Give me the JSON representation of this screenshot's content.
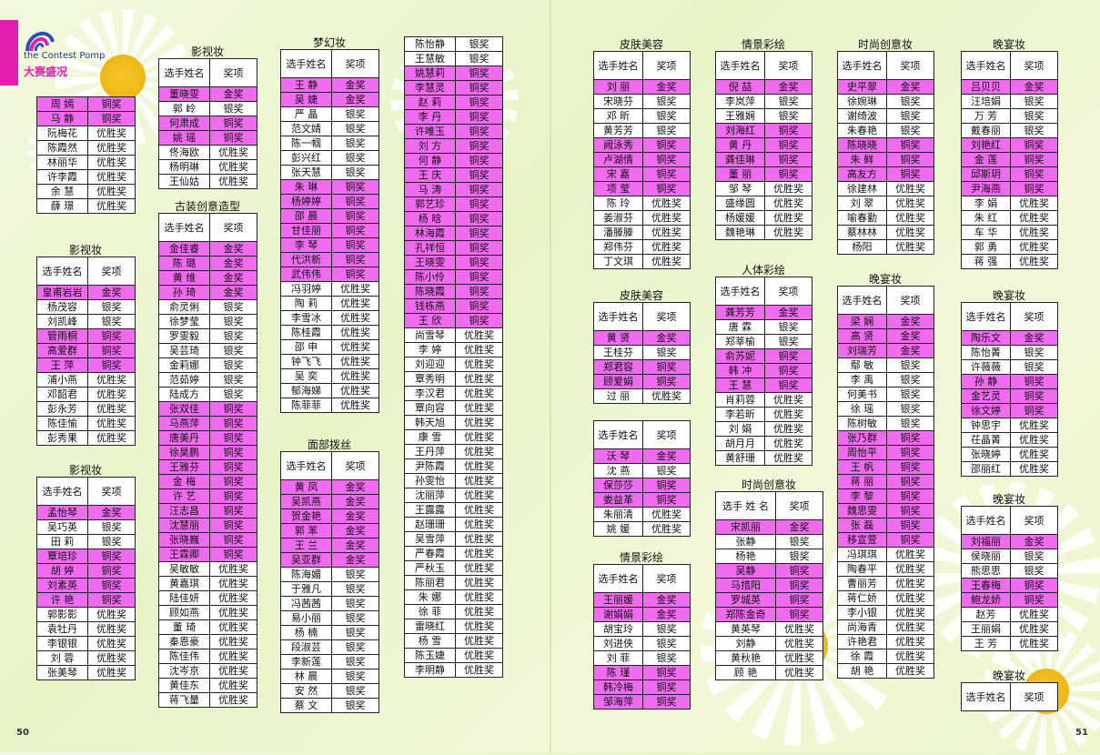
{
  "logo": {
    "en": "the Contest Pomp",
    "cn": "大赛盛况"
  },
  "pages": {
    "left": "50",
    "right": "51"
  },
  "header": {
    "name": "选手姓名",
    "name_alt": "选手 姓 名",
    "award": "奖项"
  },
  "blocks": [
    {
      "title": "",
      "header": false,
      "rows": [
        [
          "周 嫣",
          "铜奖"
        ],
        [
          "马 静",
          "铜奖"
        ],
        [
          "阮梅花",
          "优胜奖"
        ],
        [
          "陈霞然",
          "优胜奖"
        ],
        [
          "林丽华",
          "优胜奖"
        ],
        [
          "许李霞",
          "优胜奖"
        ],
        [
          "余 慧",
          "优胜奖"
        ],
        [
          "薛 璟",
          "优胜奖"
        ]
      ]
    },
    {
      "title": "影视妆",
      "header": true,
      "rows": [
        [
          "皇甫岩岩",
          "金奖"
        ],
        [
          "杨茂容",
          "银奖"
        ],
        [
          "刘凯峰",
          "银奖"
        ],
        [
          "管雨桐",
          "铜奖"
        ],
        [
          "高爱群",
          "铜奖"
        ],
        [
          "王 萍",
          "铜奖"
        ],
        [
          "浦小燕",
          "优胜奖"
        ],
        [
          "邓韶君",
          "优胜奖"
        ],
        [
          "彭永芳",
          "优胜奖"
        ],
        [
          "陈佳愉",
          "优胜奖"
        ],
        [
          "彭秀果",
          "优胜奖"
        ]
      ]
    },
    {
      "title": "影视妆",
      "header": true,
      "rows": [
        [
          "孟怡琴",
          "金奖"
        ],
        [
          "吴巧英",
          "银奖"
        ],
        [
          "田 莉",
          "银奖"
        ],
        [
          "覃培珍",
          "铜奖"
        ],
        [
          "胡 婷",
          "铜奖"
        ],
        [
          "刘素英",
          "铜奖"
        ],
        [
          "许 艳",
          "铜奖"
        ],
        [
          "郭影影",
          "优胜奖"
        ],
        [
          "袁牡丹",
          "优胜奖"
        ],
        [
          "李银银",
          "优胜奖"
        ],
        [
          "刘 蓉",
          "优胜奖"
        ],
        [
          "张美琴",
          "优胜奖"
        ]
      ]
    },
    {
      "title": "影视妆",
      "header": true,
      "rows": [
        [
          "董晓雯",
          "金奖"
        ],
        [
          "郭 岭",
          "银奖"
        ],
        [
          "何肃成",
          "铜奖"
        ],
        [
          "姚 瑶",
          "铜奖"
        ],
        [
          "佟海欧",
          "优胜奖"
        ],
        [
          "杨明琳",
          "优胜奖"
        ],
        [
          "王仙姑",
          "优胜奖"
        ]
      ]
    },
    {
      "title": "古装创意造型",
      "header": true,
      "rows": [
        [
          "金佳睿",
          "金奖"
        ],
        [
          "陈 璐",
          "金奖"
        ],
        [
          "黄 维",
          "金奖"
        ],
        [
          "孙 琦",
          "金奖"
        ],
        [
          "俞灵俐",
          "银奖"
        ],
        [
          "徐梦莹",
          "银奖"
        ],
        [
          "罗雯毅",
          "银奖"
        ],
        [
          "吴芸琦",
          "银奖"
        ],
        [
          "金莉娜",
          "银奖"
        ],
        [
          "范茹婷",
          "银奖"
        ],
        [
          "陆成方",
          "银奖"
        ],
        [
          "张双佳",
          "铜奖"
        ],
        [
          "马燕萍",
          "铜奖"
        ],
        [
          "唐美丹",
          "铜奖"
        ],
        [
          "徐昊鹏",
          "铜奖"
        ],
        [
          "王雅芬",
          "铜奖"
        ],
        [
          "金 梅",
          "铜奖"
        ],
        [
          "许 艺",
          "铜奖"
        ],
        [
          "汪志昌",
          "铜奖"
        ],
        [
          "沈慧丽",
          "铜奖"
        ],
        [
          "张晓巍",
          "铜奖"
        ],
        [
          "王霖卿",
          "铜奖"
        ],
        [
          "吴敏敏",
          "优胜奖"
        ],
        [
          "黄嘉琪",
          "优胜奖"
        ],
        [
          "陆佳妍",
          "优胜奖"
        ],
        [
          "顾如燕",
          "优胜奖"
        ],
        [
          "董 琦",
          "优胜奖"
        ],
        [
          "秦恩豪",
          "优胜奖"
        ],
        [
          "陈佳伟",
          "优胜奖"
        ],
        [
          "沈岑京",
          "优胜奖"
        ],
        [
          "黄佳东",
          "优胜奖"
        ],
        [
          "蒋飞量",
          "优胜奖"
        ]
      ]
    },
    {
      "title": "梦幻妆",
      "header": true,
      "rows": [
        [
          "王 静",
          "金奖"
        ],
        [
          "吴 婕",
          "金奖"
        ],
        [
          "严 晶",
          "银奖"
        ],
        [
          "范文婧",
          "银奖"
        ],
        [
          "陈一帼",
          "银奖"
        ],
        [
          "彭兴红",
          "银奖"
        ],
        [
          "张天慧",
          "银奖"
        ],
        [
          "朱 琳",
          "铜奖"
        ],
        [
          "杨婷婷",
          "铜奖"
        ],
        [
          "邵 晨",
          "铜奖"
        ],
        [
          "甘佳丽",
          "铜奖"
        ],
        [
          "李 琴",
          "铜奖"
        ],
        [
          "代洪新",
          "铜奖"
        ],
        [
          "武伟伟",
          "铜奖"
        ],
        [
          "冯羽婷",
          "优胜奖"
        ],
        [
          "陶 莉",
          "优胜奖"
        ],
        [
          "李雪冰",
          "优胜奖"
        ],
        [
          "陈桂霞",
          "优胜奖"
        ],
        [
          "邵 申",
          "优胜奖"
        ],
        [
          "钟飞飞",
          "优胜奖"
        ],
        [
          "吴 奕",
          "优胜奖"
        ],
        [
          "郁海娣",
          "优胜奖"
        ],
        [
          "陈菲菲",
          "优胜奖"
        ]
      ]
    },
    {
      "title": "面部拨丝",
      "header": true,
      "rows": [
        [
          "黄 凤",
          "金奖"
        ],
        [
          "吴凯燕",
          "金奖"
        ],
        [
          "贺金艳",
          "金奖"
        ],
        [
          "郭 苯",
          "金奖"
        ],
        [
          "王 兰",
          "金奖"
        ],
        [
          "吴亚群",
          "金奖"
        ],
        [
          "陈海媚",
          "银奖"
        ],
        [
          "于雅凡",
          "银奖"
        ],
        [
          "冯茜茜",
          "银奖"
        ],
        [
          "易小丽",
          "银奖"
        ],
        [
          "杨 楠",
          "银奖"
        ],
        [
          "段淑芸",
          "银奖"
        ],
        [
          "李新莲",
          "银奖"
        ],
        [
          "林 晨",
          "银奖"
        ],
        [
          "安 然",
          "银奖"
        ],
        [
          "蔡 文",
          "银奖"
        ]
      ]
    },
    {
      "title": "",
      "header": false,
      "rows": [
        [
          "陈怡静",
          "银奖"
        ],
        [
          "王慧敏",
          "银奖"
        ],
        [
          "姚慧莉",
          "铜奖"
        ],
        [
          "李慧灵",
          "铜奖"
        ],
        [
          "赵 莉",
          "铜奖"
        ],
        [
          "李 丹",
          "铜奖"
        ],
        [
          "许唯玉",
          "铜奖"
        ],
        [
          "刘 方",
          "铜奖"
        ],
        [
          "何 静",
          "铜奖"
        ],
        [
          "王 庆",
          "铜奖"
        ],
        [
          "马 涛",
          "铜奖"
        ],
        [
          "郭艺珍",
          "铜奖"
        ],
        [
          "杨 晗",
          "铜奖"
        ],
        [
          "林海霞",
          "铜奖"
        ],
        [
          "孔祥恒",
          "铜奖"
        ],
        [
          "王晓雯",
          "铜奖"
        ],
        [
          "陈小伶",
          "铜奖"
        ],
        [
          "陈晓霞",
          "铜奖"
        ],
        [
          "钱栋燕",
          "铜奖"
        ],
        [
          "王 欣",
          "铜奖"
        ],
        [
          "尚雪琴",
          "优胜奖"
        ],
        [
          "李 婷",
          "优胜奖"
        ],
        [
          "刘迎迎",
          "优胜奖"
        ],
        [
          "覃秀明",
          "优胜奖"
        ],
        [
          "李汉君",
          "优胜奖"
        ],
        [
          "覃向容",
          "优胜奖"
        ],
        [
          "韩天旭",
          "优胜奖"
        ],
        [
          "康 雪",
          "优胜奖"
        ],
        [
          "王丹萍",
          "优胜奖"
        ],
        [
          "尹陈霞",
          "优胜奖"
        ],
        [
          "孙雯怡",
          "优胜奖"
        ],
        [
          "沈丽萍",
          "优胜奖"
        ],
        [
          "王露露",
          "优胜奖"
        ],
        [
          "赵珊珊",
          "优胜奖"
        ],
        [
          "吴雪萍",
          "优胜奖"
        ],
        [
          "严春霞",
          "优胜奖"
        ],
        [
          "严秋玉",
          "优胜奖"
        ],
        [
          "陈丽君",
          "优胜奖"
        ],
        [
          "朱 娜",
          "优胜奖"
        ],
        [
          "徐 菲",
          "优胜奖"
        ],
        [
          "雷晓红",
          "优胜奖"
        ],
        [
          "杨 雪",
          "优胜奖"
        ],
        [
          "陈玉婕",
          "优胜奖"
        ],
        [
          "李明静",
          "优胜奖"
        ]
      ]
    },
    {
      "title": "皮肤美容",
      "header": true,
      "rows": [
        [
          "刘 丽",
          "金奖"
        ],
        [
          "宋晓芬",
          "银奖"
        ],
        [
          "邓 昕",
          "银奖"
        ],
        [
          "黄芳芳",
          "银奖"
        ],
        [
          "阙泳秀",
          "铜奖"
        ],
        [
          "卢湖倩",
          "铜奖"
        ],
        [
          "宋 嘉",
          "铜奖"
        ],
        [
          "项 莹",
          "铜奖"
        ],
        [
          "陈 玲",
          "优胜奖"
        ],
        [
          "姜淑芬",
          "优胜奖"
        ],
        [
          "潘滕滕",
          "优胜奖"
        ],
        [
          "郑伟芬",
          "优胜奖"
        ],
        [
          "丁文琪",
          "优胜奖"
        ]
      ]
    },
    {
      "title": "皮肤美容",
      "header": true,
      "rows": [
        [
          "黄 贤",
          "金奖"
        ],
        [
          "王桂芬",
          "银奖"
        ],
        [
          "郑君容",
          "铜奖"
        ],
        [
          "顾爱娟",
          "铜奖"
        ],
        [
          "过 丽",
          "优胜奖"
        ]
      ]
    },
    {
      "title": "",
      "header": true,
      "rows": [
        [
          "沃 琴",
          "金奖"
        ],
        [
          "沈 燕",
          "银奖"
        ],
        [
          "保莎莎",
          "铜奖"
        ],
        [
          "娄益革",
          "铜奖"
        ],
        [
          "朱丽清",
          "优胜奖"
        ],
        [
          "姚 媛",
          "优胜奖"
        ]
      ]
    },
    {
      "title": "情景彩绘",
      "header": true,
      "rows": [
        [
          "王丽媛",
          "金奖"
        ],
        [
          "谢娟娟",
          "金奖"
        ],
        [
          "胡宝玲",
          "银奖"
        ],
        [
          "刘进侠",
          "银奖"
        ],
        [
          "刘 菲",
          "银奖"
        ],
        [
          "陈 瑾",
          "铜奖"
        ],
        [
          "韩冷梅",
          "铜奖"
        ],
        [
          "邹海萍",
          "铜奖"
        ]
      ]
    },
    {
      "title": "情景彩绘",
      "header": true,
      "rows": [
        [
          "倪 喆",
          "金奖"
        ],
        [
          "李岚萍",
          "银奖"
        ],
        [
          "王雅娴",
          "银奖"
        ],
        [
          "刘海红",
          "铜奖"
        ],
        [
          "黄 丹",
          "铜奖"
        ],
        [
          "龚佳琳",
          "铜奖"
        ],
        [
          "董 丽",
          "铜奖"
        ],
        [
          "邹 琴",
          "优胜奖"
        ],
        [
          "盛缘圆",
          "优胜奖"
        ],
        [
          "杨媛媛",
          "优胜奖"
        ],
        [
          "魏艳琳",
          "优胜奖"
        ]
      ]
    },
    {
      "title": "人体彩绘",
      "header": true,
      "rows": [
        [
          "龚芳芳",
          "金奖"
        ],
        [
          "唐 霖",
          "银奖"
        ],
        [
          "郑莘榆",
          "银奖"
        ],
        [
          "俞苏妮",
          "铜奖"
        ],
        [
          "韩 冲",
          "铜奖"
        ],
        [
          "王 慧",
          "铜奖"
        ],
        [
          "肖莉蓉",
          "优胜奖"
        ],
        [
          "李若昕",
          "优胜奖"
        ],
        [
          "刘 娟",
          "优胜奖"
        ],
        [
          "胡月月",
          "优胜奖"
        ],
        [
          "黄舒珊",
          "优胜奖"
        ]
      ]
    },
    {
      "title": "时尚创意妆",
      "header": true,
      "alt": true,
      "rows": [
        [
          "宋凯丽",
          "金奖"
        ],
        [
          "张静",
          "银奖"
        ],
        [
          "杨艳",
          "银奖"
        ],
        [
          "吴静",
          "铜奖"
        ],
        [
          "马措阳",
          "铜奖"
        ],
        [
          "罗城英",
          "铜奖"
        ],
        [
          "郑陈金奇",
          "铜奖"
        ],
        [
          "黄英琴",
          "优胜奖"
        ],
        [
          "刘静",
          "优胜奖"
        ],
        [
          "黄秋艳",
          "优胜奖"
        ],
        [
          "顾 艳",
          "优胜奖"
        ]
      ]
    },
    {
      "title": "时尚创意妆",
      "header": true,
      "rows": [
        [
          "史平翠",
          "金奖"
        ],
        [
          "徐婉琳",
          "银奖"
        ],
        [
          "谢绮波",
          "银奖"
        ],
        [
          "朱春艳",
          "银奖"
        ],
        [
          "陈晓晓",
          "铜奖"
        ],
        [
          "朱 鲜",
          "铜奖"
        ],
        [
          "高友方",
          "铜奖"
        ],
        [
          "徐建林",
          "优胜奖"
        ],
        [
          "刘 翠",
          "优胜奖"
        ],
        [
          "喻春勤",
          "优胜奖"
        ],
        [
          "蔡林林",
          "优胜奖"
        ],
        [
          "杨阳",
          "优胜奖"
        ]
      ]
    },
    {
      "title": "晚宴妆",
      "header": true,
      "rows": [
        [
          "梁 娴",
          "金奖"
        ],
        [
          "高 贤",
          "金奖"
        ],
        [
          "刘瑞芳",
          "金奖"
        ],
        [
          "鄢 敏",
          "银奖"
        ],
        [
          "李 禹",
          "银奖"
        ],
        [
          "何美书",
          "银奖"
        ],
        [
          "徐 瑶",
          "银奖"
        ],
        [
          "陈树敏",
          "银奖"
        ],
        [
          "张乃群",
          "铜奖"
        ],
        [
          "周怡平",
          "铜奖"
        ],
        [
          "王 帆",
          "铜奖"
        ],
        [
          "蒋 丽",
          "铜奖"
        ],
        [
          "李 黎",
          "铜奖"
        ],
        [
          "魏思雯",
          "铜奖"
        ],
        [
          "张 磊",
          "铜奖"
        ],
        [
          "移宣萱",
          "铜奖"
        ],
        [
          "冯琪琪",
          "优胜奖"
        ],
        [
          "陶春平",
          "优胜奖"
        ],
        [
          "曹丽芳",
          "优胜奖"
        ],
        [
          "蒋仁娇",
          "优胜奖"
        ],
        [
          "李小银",
          "优胜奖"
        ],
        [
          "尚海青",
          "优胜奖"
        ],
        [
          "许艳君",
          "优胜奖"
        ],
        [
          "徐 霞",
          "优胜奖"
        ],
        [
          "胡 艳",
          "优胜奖"
        ]
      ]
    },
    {
      "title": "晚宴妆",
      "header": true,
      "rows": [
        [
          "吕贝贝",
          "金奖"
        ],
        [
          "汪培娟",
          "银奖"
        ],
        [
          "万 芳",
          "银奖"
        ],
        [
          "戴春丽",
          "银奖"
        ],
        [
          "刘艳红",
          "铜奖"
        ],
        [
          "金 莲",
          "铜奖"
        ],
        [
          "邱斯玥",
          "铜奖"
        ],
        [
          "尹海燕",
          "铜奖"
        ],
        [
          "李 娟",
          "优胜奖"
        ],
        [
          "朱 红",
          "优胜奖"
        ],
        [
          "车 华",
          "优胜奖"
        ],
        [
          "郭 勇",
          "优胜奖"
        ],
        [
          "蒋 强",
          "优胜奖"
        ]
      ]
    },
    {
      "title": "晚宴妆",
      "header": true,
      "rows": [
        [
          "陶乐文",
          "金奖"
        ],
        [
          "陈怡菁",
          "银奖"
        ],
        [
          "许薇薇",
          "银奖"
        ],
        [
          "孙 静",
          "铜奖"
        ],
        [
          "金艺灵",
          "铜奖"
        ],
        [
          "徐文婷",
          "铜奖"
        ],
        [
          "钟思宇",
          "优胜奖"
        ],
        [
          "茌晶菁",
          "优胜奖"
        ],
        [
          "张晓婷",
          "优胜奖"
        ],
        [
          "邵丽红",
          "优胜奖"
        ]
      ]
    },
    {
      "title": "晚宴妆",
      "header": true,
      "rows": [
        [
          "刘福丽",
          "金奖"
        ],
        [
          "侯晓丽",
          "银奖"
        ],
        [
          "熊思思",
          "银奖"
        ],
        [
          "王春梅",
          "铜奖"
        ],
        [
          "鲍龙娇",
          "铜奖"
        ],
        [
          "赵芳",
          "优胜奖"
        ],
        [
          "王丽娟",
          "优胜奖"
        ],
        [
          "王 芳",
          "优胜奖"
        ]
      ]
    },
    {
      "title": "晚宴妆",
      "header": true,
      "rows": []
    }
  ]
}
